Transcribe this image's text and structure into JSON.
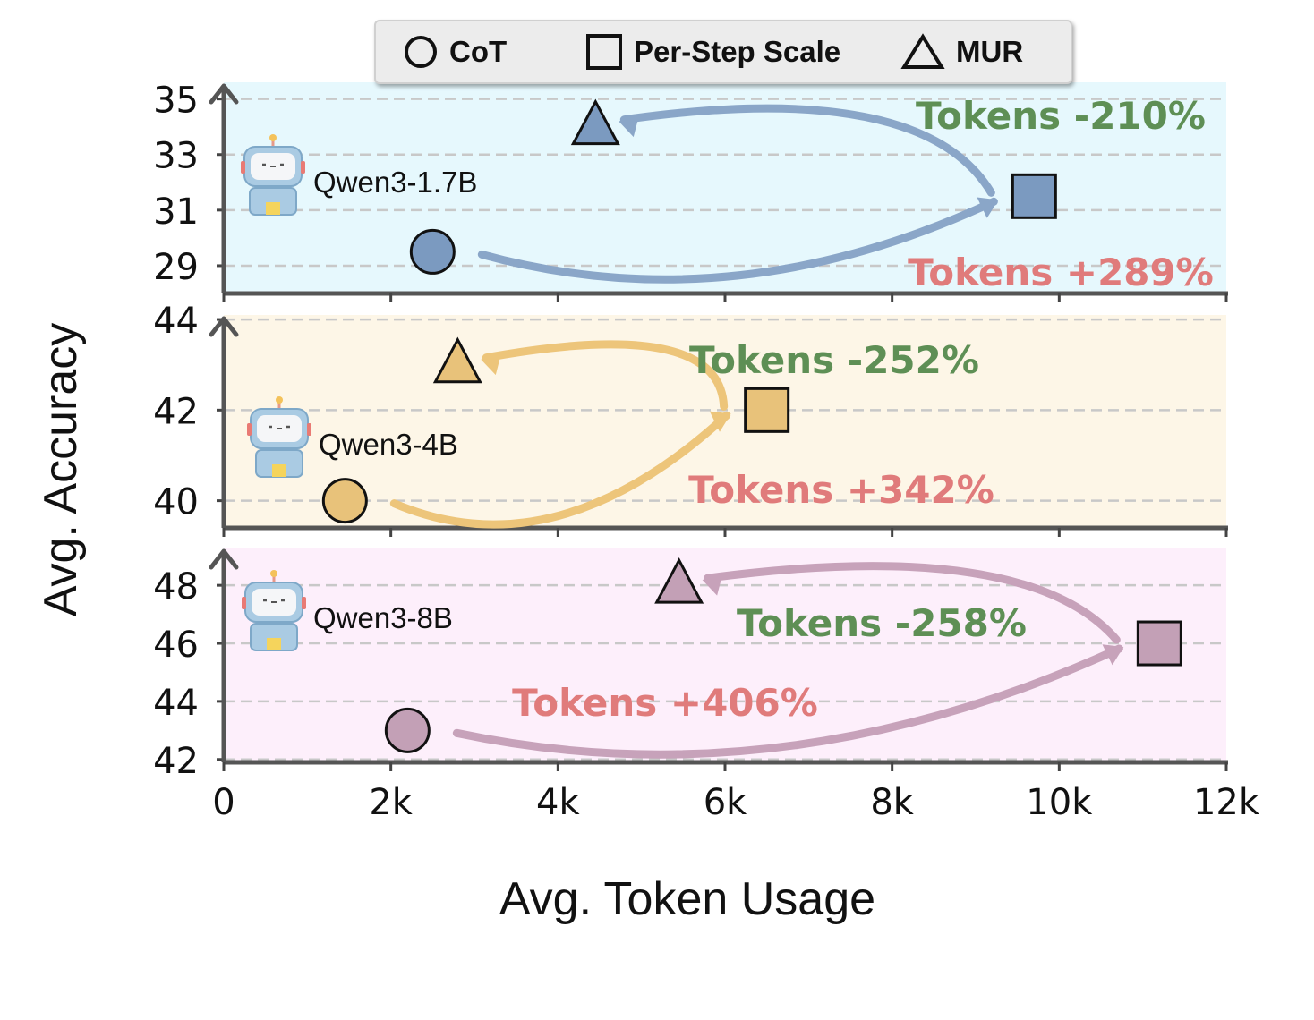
{
  "legend": {
    "items": [
      {
        "label": "CoT",
        "marker": "circle"
      },
      {
        "label": "Per-Step Scale",
        "marker": "square"
      },
      {
        "label": "MUR",
        "marker": "triangle"
      }
    ]
  },
  "ylabel": "Avg. Accuracy",
  "xlabel": "Avg. Token Usage",
  "chart_data": [
    {
      "type": "scatter",
      "model": "Qwen3-1.7B",
      "icon": "robot-icon",
      "background_color": "#e6f8fd",
      "marker_color": "#7b9ac0",
      "arrow_color": "#8aa6c8",
      "xlim": [
        0,
        12000
      ],
      "ylim": [
        28,
        35.6
      ],
      "yticks": [
        29,
        31,
        33,
        35
      ],
      "points": [
        {
          "method": "CoT",
          "marker": "circle",
          "x": 2500,
          "y": 29.5
        },
        {
          "method": "Per-Step Scale",
          "marker": "square",
          "x": 9700,
          "y": 31.5
        },
        {
          "method": "MUR",
          "marker": "triangle",
          "x": 4450,
          "y": 34.0
        }
      ],
      "annotations": [
        {
          "text": "Tokens +289%",
          "color": "#e07b7b"
        },
        {
          "text": "Tokens -210%",
          "color": "#5e8f55"
        }
      ]
    },
    {
      "type": "scatter",
      "model": "Qwen3-4B",
      "icon": "robot-icon",
      "background_color": "#fdf6e7",
      "marker_color": "#e8c27a",
      "arrow_color": "#edc57a",
      "xlim": [
        0,
        12000
      ],
      "ylim": [
        39.4,
        44.1
      ],
      "yticks": [
        40,
        42,
        44
      ],
      "points": [
        {
          "method": "CoT",
          "marker": "circle",
          "x": 1450,
          "y": 40.0
        },
        {
          "method": "Per-Step Scale",
          "marker": "square",
          "x": 6500,
          "y": 42.0
        },
        {
          "method": "MUR",
          "marker": "triangle",
          "x": 2800,
          "y": 43.0
        }
      ],
      "annotations": [
        {
          "text": "Tokens +342%",
          "color": "#e07b7b"
        },
        {
          "text": "Tokens -252%",
          "color": "#5e8f55"
        }
      ]
    },
    {
      "type": "scatter",
      "model": "Qwen3-8B",
      "icon": "robot-icon",
      "background_color": "#fdeffb",
      "marker_color": "#c3a0b6",
      "arrow_color": "#c7a2ba",
      "xlim": [
        0,
        12000
      ],
      "ylim": [
        41.9,
        49.3
      ],
      "yticks": [
        42,
        44,
        46,
        48
      ],
      "points": [
        {
          "method": "CoT",
          "marker": "circle",
          "x": 2200,
          "y": 43.0
        },
        {
          "method": "Per-Step Scale",
          "marker": "square",
          "x": 11200,
          "y": 46.0
        },
        {
          "method": "MUR",
          "marker": "triangle",
          "x": 5450,
          "y": 48.0
        }
      ],
      "annotations": [
        {
          "text": "Tokens +406%",
          "color": "#e07b7b"
        },
        {
          "text": "Tokens -258%",
          "color": "#5e8f55"
        }
      ]
    }
  ],
  "xticks": [
    {
      "value": 0,
      "label": "0"
    },
    {
      "value": 2000,
      "label": "2k"
    },
    {
      "value": 4000,
      "label": "4k"
    },
    {
      "value": 6000,
      "label": "6k"
    },
    {
      "value": 8000,
      "label": "8k"
    },
    {
      "value": 10000,
      "label": "10k"
    },
    {
      "value": 12000,
      "label": "12k"
    }
  ]
}
